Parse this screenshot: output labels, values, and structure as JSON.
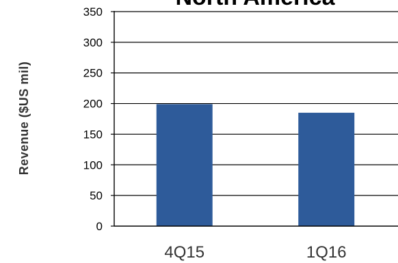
{
  "chart_data": {
    "type": "bar",
    "title": "North America",
    "ylabel": "Revenue ($US mil)",
    "xlabel": "",
    "categories": [
      "4Q15",
      "1Q16"
    ],
    "values": [
      199,
      185
    ],
    "ylim": [
      0,
      350
    ],
    "yticks": [
      0,
      50,
      100,
      150,
      200,
      250,
      300,
      350
    ],
    "grid": true,
    "legend": "none",
    "bar_color": "#2E5B9A",
    "grid_color": "#000000",
    "axis_color": "#000000"
  }
}
